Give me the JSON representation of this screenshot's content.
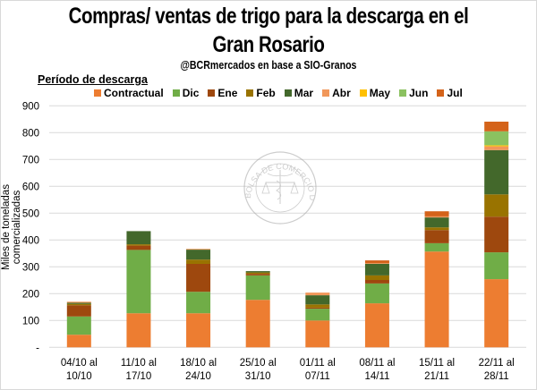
{
  "chart_data": {
    "type": "bar",
    "stacked": true,
    "title_line1": "Compras/ ventas de trigo para la descarga en el",
    "title_line2": "Gran Rosario",
    "subtitle": "@BCRmercados  en base a SIO-Granos",
    "legend_title": "Período de descarga",
    "legend_position": "top",
    "xlabel": "",
    "ylabel": "Miles de toneladas comercializadas",
    "ylim": [
      0,
      900
    ],
    "yticks": [
      "-",
      "100",
      "200",
      "300",
      "400",
      "500",
      "600",
      "700",
      "800",
      "900"
    ],
    "grid": true,
    "categories": [
      [
        "04/10 al",
        "10/10"
      ],
      [
        "11/10 al",
        "17/10"
      ],
      [
        "18/10 al",
        "24/10"
      ],
      [
        "25/10 al",
        "31/10"
      ],
      [
        "01/11 al",
        "07/11"
      ],
      [
        "08/11 al",
        "14/11"
      ],
      [
        "15/11 al",
        "21/11"
      ],
      [
        "22/11 al",
        "28/11"
      ]
    ],
    "series": [
      {
        "name": "Contractual",
        "color": "#ed7d31",
        "values": [
          47,
          127,
          127,
          177,
          100,
          164,
          357,
          254
        ]
      },
      {
        "name": "Dic",
        "color": "#70ad47",
        "values": [
          68,
          236,
          80,
          91,
          44,
          74,
          31,
          100
        ]
      },
      {
        "name": "Ene",
        "color": "#9e480e",
        "values": [
          42,
          16,
          104,
          6,
          4,
          13,
          49,
          133
        ]
      },
      {
        "name": "Feb",
        "color": "#997300",
        "values": [
          5,
          5,
          16,
          5,
          12,
          17,
          10,
          83
        ]
      },
      {
        "name": "Mar",
        "color": "#43682b",
        "values": [
          4,
          49,
          37,
          5,
          34,
          43,
          37,
          165
        ]
      },
      {
        "name": "Abr",
        "color": "#f1975a",
        "values": [
          4,
          0,
          3,
          0,
          10,
          3,
          4,
          14
        ]
      },
      {
        "name": "May",
        "color": "#ffc000",
        "values": [
          0,
          0,
          0,
          0,
          0,
          0,
          0,
          4
        ]
      },
      {
        "name": "Jun",
        "color": "#8bc160",
        "values": [
          0,
          0,
          0,
          0,
          0,
          0,
          0,
          52
        ]
      },
      {
        "name": "Jul",
        "color": "#d4631a",
        "values": [
          0,
          0,
          0,
          0,
          0,
          10,
          19,
          36
        ]
      }
    ]
  },
  "watermark": {
    "text": "BOLSA DE COMERCIO DE ROSARIO"
  },
  "colors": {
    "grid": "#d9d9d9",
    "watermark": "#a6a6a6"
  }
}
